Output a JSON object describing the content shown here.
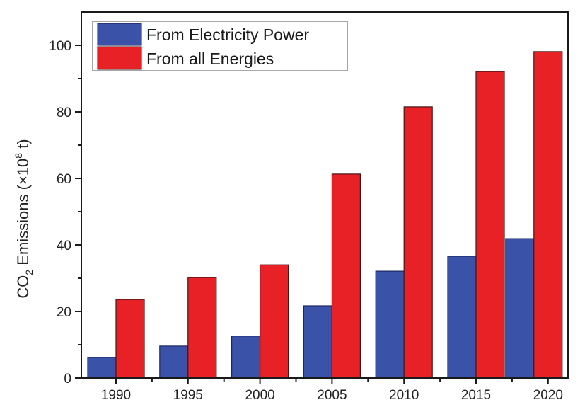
{
  "chart_data": {
    "type": "bar",
    "title": "",
    "xlabel": "",
    "ylabel": "CO2 Emissions (×10^8 t)",
    "ylabel_parts": {
      "pre": "CO",
      "sub": "2",
      "mid": " Emissions (×10",
      "sup": "8",
      "post": " t)"
    },
    "categories": [
      "1990",
      "1995",
      "2000",
      "2005",
      "2010",
      "2015",
      "2020"
    ],
    "series": [
      {
        "name": "From Electricity Power",
        "color": "#3a52a8",
        "values": [
          6.2,
          9.6,
          12.6,
          21.7,
          32.1,
          36.6,
          41.9
        ]
      },
      {
        "name": "From all Energies",
        "color": "#e82127",
        "values": [
          23.6,
          30.2,
          34.0,
          61.3,
          81.5,
          92.1,
          98.1
        ]
      }
    ],
    "ylim": [
      0,
      110
    ],
    "yticks": [
      0,
      20,
      40,
      60,
      80,
      100
    ],
    "yticks_minor": [
      10,
      30,
      50,
      70,
      90
    ],
    "grid": false,
    "legend_position": "top-left"
  }
}
